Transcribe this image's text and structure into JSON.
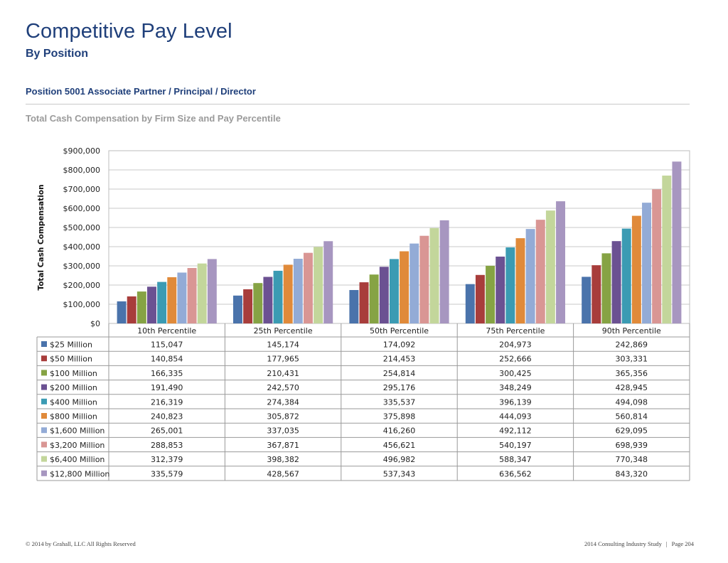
{
  "page": {
    "title": "Competitive Pay Level",
    "subtitle": "By Position",
    "position_label": "Position 5001 Associate Partner / Principal / Director",
    "chart_caption": "Total Cash Compensation by Firm Size and Pay Percentile"
  },
  "footer": {
    "copyright": "© 2014 by Grahall, LLC All Rights Reserved",
    "study": "2014 Consulting Industry Study",
    "separator": "|",
    "page": "Page 204"
  },
  "chart_data": {
    "type": "bar",
    "title": "",
    "xlabel": "",
    "ylabel": "Total Cash Compensation",
    "ylim": [
      0,
      900000
    ],
    "yticks": [
      "$0",
      "$100,000",
      "$200,000",
      "$300,000",
      "$400,000",
      "$500,000",
      "$600,000",
      "$700,000",
      "$800,000",
      "$900,000"
    ],
    "grid": true,
    "legend": "data-table-below",
    "categories": [
      "10th Percentile",
      "25th Percentile",
      "50th Percentile",
      "75th Percentile",
      "90th Percentile"
    ],
    "series": [
      {
        "name": "$25 Million",
        "color": "#4a73ab",
        "values": [
          115047,
          145174,
          174092,
          204973,
          242869
        ],
        "labels": [
          "115,047",
          "145,174",
          "174,092",
          "204,973",
          "242,869"
        ]
      },
      {
        "name": "$50 Million",
        "color": "#a83d3b",
        "values": [
          140854,
          177965,
          214453,
          252666,
          303331
        ],
        "labels": [
          "140,854",
          "177,965",
          "214,453",
          "252,666",
          "303,331"
        ]
      },
      {
        "name": "$100 Million",
        "color": "#86a344",
        "values": [
          166335,
          210431,
          254814,
          300425,
          365356
        ],
        "labels": [
          "166,335",
          "210,431",
          "254,814",
          "300,425",
          "365,356"
        ]
      },
      {
        "name": "$200 Million",
        "color": "#6b5192",
        "values": [
          191490,
          242570,
          295176,
          348249,
          428945
        ],
        "labels": [
          "191,490",
          "242,570",
          "295,176",
          "348,249",
          "428,945"
        ]
      },
      {
        "name": "$400 Million",
        "color": "#3b9bb3",
        "values": [
          216319,
          274384,
          335537,
          396139,
          494098
        ],
        "labels": [
          "216,319",
          "274,384",
          "335,537",
          "396,139",
          "494,098"
        ]
      },
      {
        "name": "$800 Million",
        "color": "#e08a3a",
        "values": [
          240823,
          305872,
          375898,
          444093,
          560814
        ],
        "labels": [
          "240,823",
          "305,872",
          "375,898",
          "444,093",
          "560,814"
        ]
      },
      {
        "name": "$1,600 Million",
        "color": "#93abd6",
        "values": [
          265001,
          337035,
          416260,
          492112,
          629095
        ],
        "labels": [
          "265,001",
          "337,035",
          "416,260",
          "492,112",
          "629,095"
        ]
      },
      {
        "name": "$3,200 Million",
        "color": "#d99694",
        "values": [
          288853,
          367871,
          456621,
          540197,
          698939
        ],
        "labels": [
          "288,853",
          "367,871",
          "456,621",
          "540,197",
          "698,939"
        ]
      },
      {
        "name": "$6,400 Million",
        "color": "#c3d69b",
        "values": [
          312379,
          398382,
          496982,
          588347,
          770348
        ],
        "labels": [
          "312,379",
          "398,382",
          "496,982",
          "588,347",
          "770,348"
        ]
      },
      {
        "name": "$12,800 Million",
        "color": "#a796c0",
        "values": [
          335579,
          428567,
          537343,
          636562,
          843320
        ],
        "labels": [
          "335,579",
          "428,567",
          "537,343",
          "636,562",
          "843,320"
        ]
      }
    ]
  }
}
